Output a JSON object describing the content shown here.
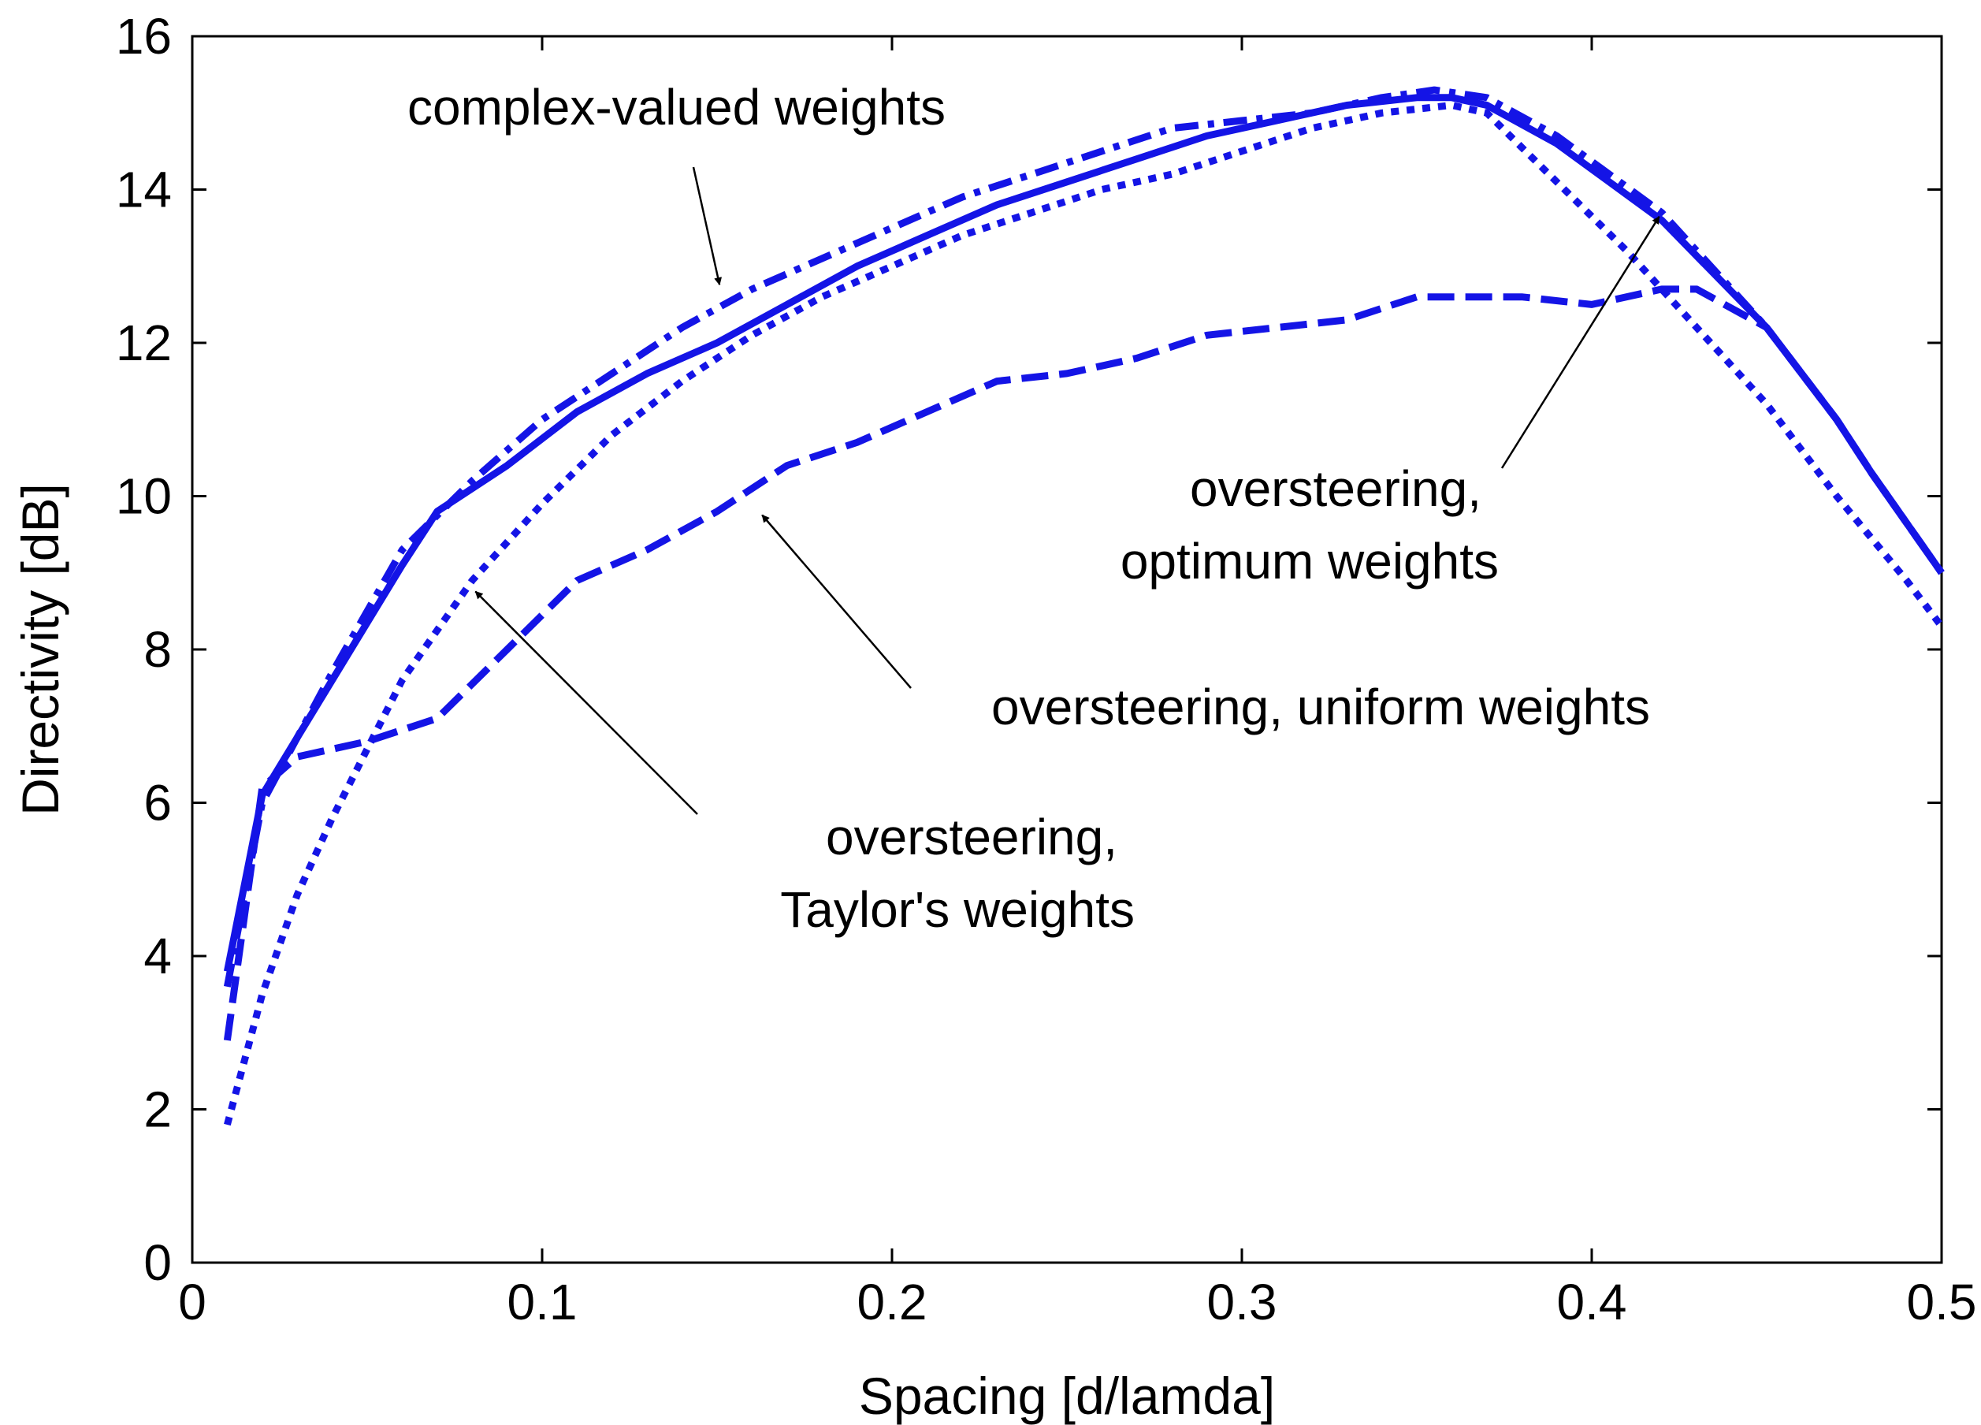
{
  "chart_data": {
    "type": "line",
    "title": "",
    "xlabel": "Spacing [d/lamda]",
    "ylabel": "Directivity [dB]",
    "xlim": [
      0,
      0.5
    ],
    "ylim": [
      0,
      16
    ],
    "xticks": [
      0,
      0.1,
      0.2,
      0.3,
      0.4,
      0.5
    ],
    "xtick_labels": [
      "0",
      "0.1",
      "0.2",
      "0.3",
      "0.4",
      "0.5"
    ],
    "yticks": [
      0,
      2,
      4,
      6,
      8,
      10,
      12,
      14,
      16
    ],
    "ytick_labels": [
      "0",
      "2",
      "4",
      "6",
      "8",
      "10",
      "12",
      "14",
      "16"
    ],
    "grid": false,
    "line_color": "#1414e6",
    "series": [
      {
        "name": "complex-valued weights",
        "style": "dashdot",
        "x": [
          0.01,
          0.02,
          0.04,
          0.06,
          0.08,
          0.1,
          0.12,
          0.14,
          0.16,
          0.18,
          0.2,
          0.22,
          0.24,
          0.26,
          0.28,
          0.3,
          0.32,
          0.34,
          0.355,
          0.37,
          0.39,
          0.42,
          0.45,
          0.47,
          0.48,
          0.5
        ],
        "y": [
          3.6,
          6.0,
          7.7,
          9.3,
          10.2,
          11.0,
          11.6,
          12.2,
          12.7,
          13.1,
          13.5,
          13.9,
          14.2,
          14.5,
          14.8,
          14.9,
          15.0,
          15.2,
          15.3,
          15.2,
          14.7,
          13.7,
          12.2,
          11.0,
          10.3,
          9.0
        ]
      },
      {
        "name": "oversteering, optimum weights",
        "style": "solid",
        "x": [
          0.01,
          0.02,
          0.04,
          0.06,
          0.07,
          0.09,
          0.11,
          0.13,
          0.15,
          0.17,
          0.19,
          0.21,
          0.23,
          0.25,
          0.27,
          0.29,
          0.31,
          0.33,
          0.35,
          0.36,
          0.37,
          0.39,
          0.42,
          0.45,
          0.47,
          0.48,
          0.5
        ],
        "y": [
          3.8,
          6.1,
          7.6,
          9.1,
          9.8,
          10.4,
          11.1,
          11.6,
          12.0,
          12.5,
          13.0,
          13.4,
          13.8,
          14.1,
          14.4,
          14.7,
          14.9,
          15.1,
          15.2,
          15.2,
          15.1,
          14.6,
          13.6,
          12.2,
          11.0,
          10.3,
          9.0
        ]
      },
      {
        "name": "oversteering, Taylor's weights",
        "style": "dotted",
        "x": [
          0.01,
          0.02,
          0.03,
          0.04,
          0.05,
          0.06,
          0.08,
          0.1,
          0.12,
          0.14,
          0.16,
          0.18,
          0.2,
          0.22,
          0.24,
          0.26,
          0.28,
          0.3,
          0.32,
          0.34,
          0.36,
          0.37,
          0.39,
          0.41,
          0.43,
          0.45,
          0.47,
          0.49,
          0.5
        ],
        "y": [
          1.8,
          3.5,
          4.8,
          5.8,
          6.7,
          7.6,
          8.9,
          9.9,
          10.8,
          11.5,
          12.1,
          12.6,
          13.0,
          13.4,
          13.7,
          14.0,
          14.2,
          14.5,
          14.8,
          15.0,
          15.1,
          15.0,
          14.1,
          13.2,
          12.2,
          11.2,
          10.0,
          8.9,
          8.3
        ]
      },
      {
        "name": "oversteering, uniform weights",
        "style": "dashed",
        "x": [
          0.01,
          0.02,
          0.03,
          0.05,
          0.07,
          0.09,
          0.11,
          0.13,
          0.15,
          0.17,
          0.19,
          0.21,
          0.23,
          0.25,
          0.27,
          0.29,
          0.31,
          0.33,
          0.35,
          0.36,
          0.38,
          0.4,
          0.42,
          0.43,
          0.45,
          0.47,
          0.48,
          0.5
        ],
        "y": [
          2.9,
          6.2,
          6.6,
          6.8,
          7.1,
          8.0,
          8.9,
          9.3,
          9.8,
          10.4,
          10.7,
          11.1,
          11.5,
          11.6,
          11.8,
          12.1,
          12.2,
          12.3,
          12.6,
          12.6,
          12.6,
          12.5,
          12.7,
          12.7,
          12.2,
          11.0,
          10.3,
          9.0
        ]
      }
    ],
    "annotations": [
      {
        "lines": [
          "complex-valued weights"
        ],
        "target": [
          0.151,
          12.7
        ]
      },
      {
        "lines": [
          "oversteering,",
          "optimum weights"
        ],
        "target": [
          0.42,
          13.7
        ]
      },
      {
        "lines": [
          "oversteering, uniform weights"
        ],
        "target": [
          0.162,
          9.8
        ]
      },
      {
        "lines": [
          "oversteering,",
          "Taylor's weights"
        ],
        "target": [
          0.08,
          8.8
        ]
      }
    ]
  }
}
